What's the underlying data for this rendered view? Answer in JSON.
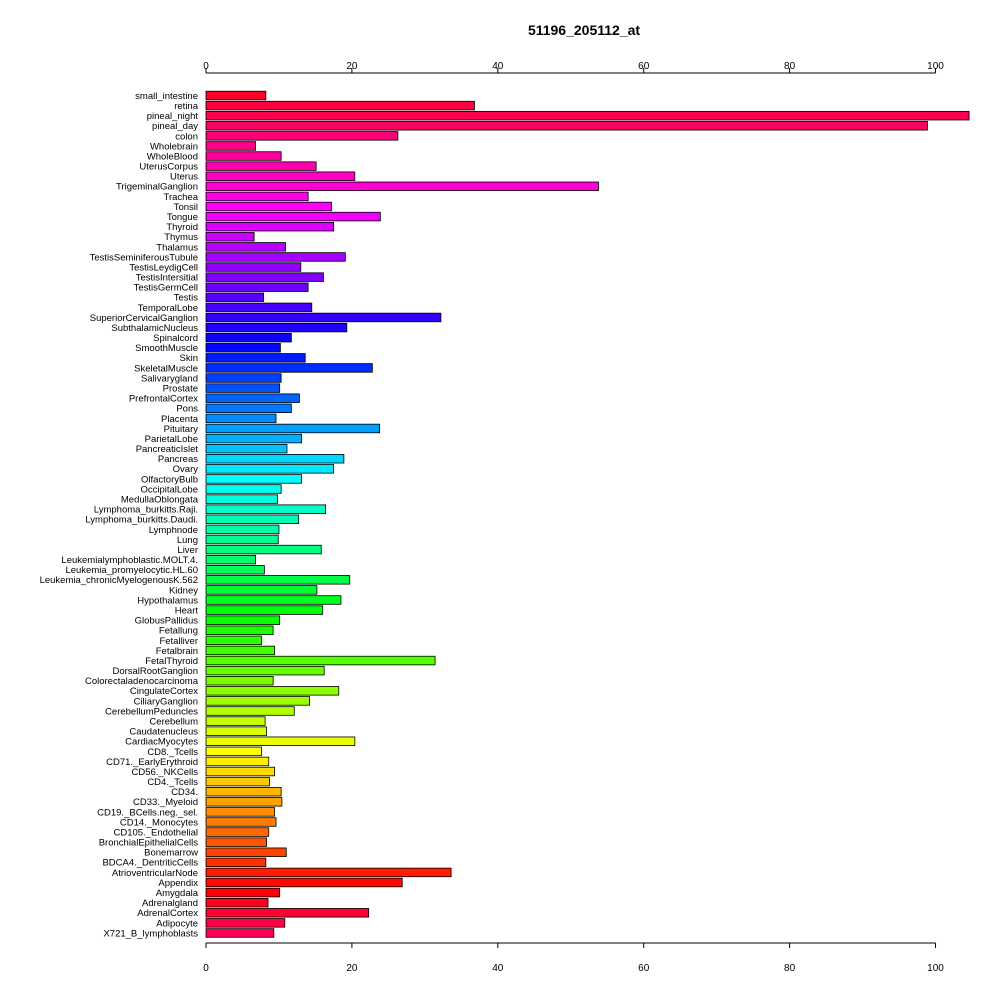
{
  "chart_data": {
    "type": "bar",
    "orientation": "horizontal",
    "title": "51196_205112_at",
    "xlim": [
      0,
      105
    ],
    "xticks": [
      0,
      20,
      40,
      60,
      80,
      100
    ],
    "xaxis_position": "top and bottom",
    "grid": false,
    "legend": "none",
    "categories": [
      "small_intestine",
      "retina",
      "pineal_night",
      "pineal_day",
      "colon",
      "Wholebrain",
      "WholeBlood",
      "UterusCorpus",
      "Uterus",
      "TrigeminalGanglion",
      "Trachea",
      "Tonsil",
      "Tongue",
      "Thyroid",
      "Thymus",
      "Thalamus",
      "TestisSeminiferousTubule",
      "TestisLeydigCell",
      "TestisIntersitial",
      "TestisGermCell",
      "Testis",
      "TemporalLobe",
      "SuperiorCervicalGanglion",
      "SubthalamicNucleus",
      "Spinalcord",
      "SmoothMuscle",
      "Skin",
      "SkeletalMuscle",
      "Salivarygland",
      "Prostate",
      "PrefrontalCortex",
      "Pons",
      "Placenta",
      "Pituitary",
      "ParietalLobe",
      "PancreaticIslet",
      "Pancreas",
      "Ovary",
      "OlfactoryBulb",
      "OccipitalLobe",
      "MedullaOblongata",
      "Lymphoma_burkitts.Raji.",
      "Lymphoma_burkitts.Daudi.",
      "Lymphnode",
      "Lung",
      "Liver",
      "Leukemialymphoblastic.MOLT.4.",
      "Leukemia_promyelocytic.HL.60",
      "Leukemia_chronicMyelogenousK.562",
      "Kidney",
      "Hypothalamus",
      "Heart",
      "GlobusPallidus",
      "Fetallung",
      "Fetalliver",
      "Fetalbrain",
      "FetalThyroid",
      "DorsalRootGanglion",
      "Colorectaladenocarcinoma",
      "CingulateCortex",
      "CiliaryGanglion",
      "CerebellumPeduncles",
      "Cerebellum",
      "Caudatenucleus",
      "CardiacMyocytes",
      "CD8._Tcells",
      "CD71._EarlyErythroid",
      "CD56._NKCells",
      "CD4._Tcells",
      "CD34.",
      "CD33._Myeloid",
      "CD19._BCells.neg._sel.",
      "CD14._Monocytes",
      "CD105._Endothelial",
      "BronchialEpithelialCells",
      "Bonemarrow",
      "BDCA4._DentriticCells",
      "AtrioventricularNode",
      "Appendix",
      "Amygdala",
      "Adrenalgland",
      "AdrenalCortex",
      "Adipocyte",
      "X721_B_lymphoblasts"
    ],
    "values": [
      8.2,
      36.8,
      104.6,
      98.9,
      26.3,
      6.8,
      10.3,
      15.1,
      20.4,
      53.8,
      14.0,
      17.2,
      23.9,
      17.5,
      6.6,
      10.9,
      19.1,
      13.0,
      16.1,
      14.0,
      7.9,
      14.5,
      32.2,
      19.3,
      11.7,
      10.2,
      13.6,
      22.8,
      10.3,
      10.1,
      12.8,
      11.7,
      9.6,
      23.8,
      13.1,
      11.1,
      18.9,
      17.5,
      13.1,
      10.3,
      9.8,
      16.4,
      12.7,
      10.0,
      9.9,
      15.8,
      6.8,
      8.0,
      19.7,
      15.2,
      18.5,
      16.0,
      10.1,
      9.2,
      7.6,
      9.4,
      31.4,
      16.2,
      9.2,
      18.2,
      14.2,
      12.1,
      8.1,
      8.3,
      20.4,
      7.6,
      8.6,
      9.4,
      8.7,
      10.3,
      10.4,
      9.4,
      9.6,
      8.6,
      8.3,
      11.0,
      8.2,
      33.6,
      26.9,
      10.1,
      8.5,
      22.3,
      10.8,
      9.3
    ]
  }
}
